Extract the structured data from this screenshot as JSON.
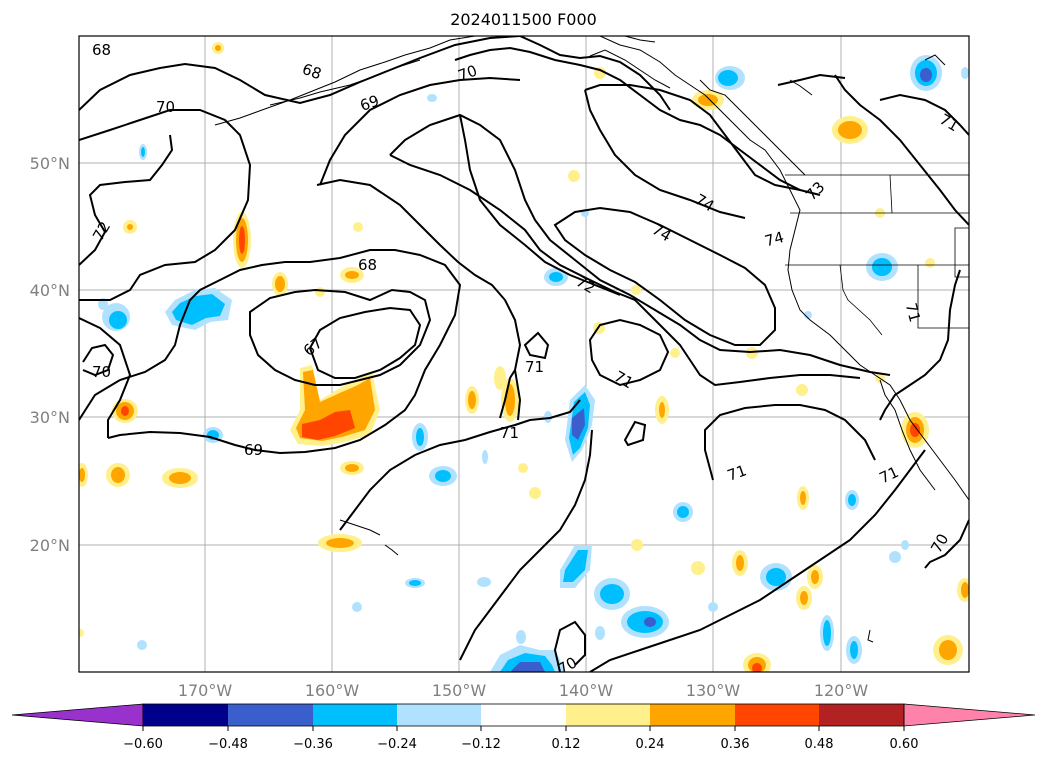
{
  "title": "2024011500 F000",
  "lat_labels": [
    "50°N",
    "40°N",
    "30°N",
    "20°N"
  ],
  "lon_labels": [
    "170°W",
    "160°W",
    "150°W",
    "140°W",
    "130°W",
    "120°W"
  ],
  "contour_labels": [
    "68",
    "68",
    "70",
    "70",
    "69",
    "72",
    "68",
    "67",
    "70",
    "69",
    "71",
    "71",
    "71",
    "72",
    "74",
    "74",
    "74",
    "71",
    "71",
    "71",
    "71",
    "70",
    "73",
    "70"
  ],
  "colorbar": {
    "colors": [
      "#9932cc",
      "#00008b",
      "#3a5fcd",
      "#00bfff",
      "#b0e2ff",
      "#ffffff",
      "#fff08c",
      "#ffa500",
      "#ff4500",
      "#b22222",
      "#ff82ab"
    ],
    "tick_labels": [
      "−0.60",
      "−0.48",
      "−0.36",
      "−0.24",
      "−0.12",
      "0.12",
      "0.24",
      "0.36",
      "0.48",
      "0.60"
    ]
  }
}
